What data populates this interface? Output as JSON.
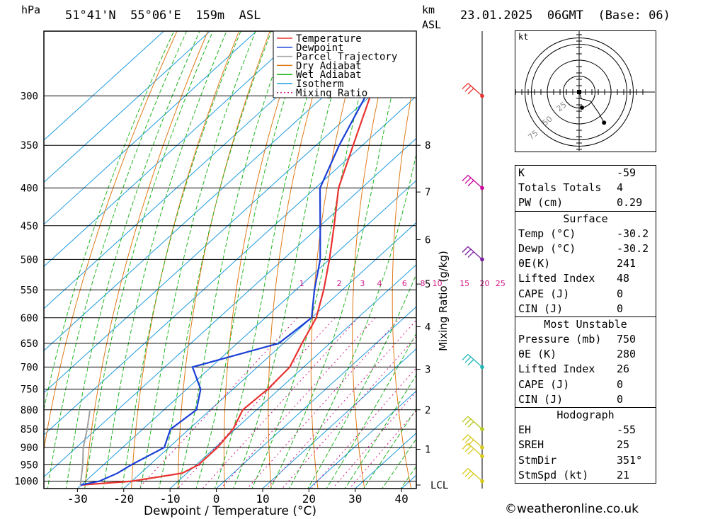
{
  "header": {
    "location": "51°41'N  55°06'E  159m  ASL",
    "datetime": "23.01.2025  06GMT  (Base: 06)",
    "pressure_unit": "hPa",
    "height_unit": "km",
    "height_unit2": "ASL"
  },
  "chart_data": {
    "type": "line",
    "subtype": "skew-T log-P diagram",
    "xlabel": "Dewpoint / Temperature (°C)",
    "ylabel": "hPa",
    "right_axis_label": "Mixing Ratio (g/kg)",
    "x_ticks": [
      -30,
      -20,
      -10,
      0,
      10,
      20,
      30,
      40
    ],
    "pressure_levels": [
      300,
      350,
      400,
      450,
      500,
      550,
      600,
      650,
      700,
      750,
      800,
      850,
      900,
      950,
      1000
    ],
    "km_ticks": [
      {
        "label": "8",
        "p": 350
      },
      {
        "label": "7",
        "p": 405
      },
      {
        "label": "6",
        "p": 470
      },
      {
        "label": "5",
        "p": 540
      },
      {
        "label": "4",
        "p": 617
      },
      {
        "label": "3",
        "p": 705
      },
      {
        "label": "2",
        "p": 800
      },
      {
        "label": "1",
        "p": 905
      },
      {
        "label": "LCL",
        "p": 1012
      }
    ],
    "mixing_ratio_labels": [
      "1",
      "2",
      "3",
      "4",
      "6",
      "8",
      "10",
      "15",
      "20",
      "25"
    ],
    "legend": [
      "Temperature",
      "Dewpoint",
      "Parcel Trajectory",
      "Dry Adiabat",
      "Wet Adiabat",
      "Isotherm",
      "Mixing Ratio"
    ],
    "colors": {
      "temperature": "#e8322f",
      "dewpoint": "#1a3fd6",
      "parcel": "#a0a0a0",
      "dry_adiabat": "#e07b1a",
      "wet_adiabat": "#21b521",
      "isotherm": "#1e9be0",
      "mixing_ratio": "#d01a8a"
    },
    "series": [
      {
        "name": "Temperature",
        "points": [
          {
            "p": 1012,
            "t": -30.2
          },
          {
            "p": 1000,
            "t": -20
          },
          {
            "p": 975,
            "t": -11
          },
          {
            "p": 950,
            "t": -9.5
          },
          {
            "p": 900,
            "t": -9.5
          },
          {
            "p": 850,
            "t": -10.5
          },
          {
            "p": 800,
            "t": -13
          },
          {
            "p": 750,
            "t": -12.5
          },
          {
            "p": 700,
            "t": -13
          },
          {
            "p": 650,
            "t": -16
          },
          {
            "p": 600,
            "t": -19
          },
          {
            "p": 550,
            "t": -24
          },
          {
            "p": 500,
            "t": -30
          },
          {
            "p": 450,
            "t": -37
          },
          {
            "p": 400,
            "t": -45
          },
          {
            "p": 350,
            "t": -52
          },
          {
            "p": 300,
            "t": -60
          }
        ]
      },
      {
        "name": "Dewpoint",
        "points": [
          {
            "p": 1012,
            "t": -30.2
          },
          {
            "p": 1000,
            "t": -27
          },
          {
            "p": 975,
            "t": -25
          },
          {
            "p": 950,
            "t": -24
          },
          {
            "p": 900,
            "t": -21
          },
          {
            "p": 850,
            "t": -24
          },
          {
            "p": 800,
            "t": -23
          },
          {
            "p": 750,
            "t": -27
          },
          {
            "p": 700,
            "t": -34
          },
          {
            "p": 650,
            "t": -21
          },
          {
            "p": 600,
            "t": -20
          },
          {
            "p": 550,
            "t": -26
          },
          {
            "p": 500,
            "t": -32
          },
          {
            "p": 450,
            "t": -40
          },
          {
            "p": 400,
            "t": -49
          },
          {
            "p": 350,
            "t": -55
          },
          {
            "p": 300,
            "t": -61
          }
        ]
      },
      {
        "name": "Parcel Trajectory",
        "points": [
          {
            "p": 1012,
            "t": -30.2
          },
          {
            "p": 950,
            "t": -34.5
          },
          {
            "p": 900,
            "t": -38.5
          },
          {
            "p": 850,
            "t": -42
          },
          {
            "p": 800,
            "t": -46
          }
        ]
      }
    ],
    "wind_barbs": [
      {
        "p": 300,
        "color": "#e8322f"
      },
      {
        "p": 400,
        "color": "#cc0099"
      },
      {
        "p": 500,
        "color": "#7a1fa0"
      },
      {
        "p": 700,
        "color": "#1ab5b5"
      },
      {
        "p": 850,
        "color": "#b5c81a"
      },
      {
        "p": 900,
        "color": "#d7c81a"
      },
      {
        "p": 925,
        "color": "#d7c81a"
      },
      {
        "p": 1000,
        "color": "#d7c81a"
      }
    ]
  },
  "hodograph": {
    "unit": "kt",
    "ring_labels": [
      "25",
      "50",
      "75"
    ],
    "trace": [
      [
        0,
        0
      ],
      [
        2,
        -6
      ],
      [
        10,
        -8
      ],
      [
        17,
        -18
      ],
      [
        22,
        -27
      ]
    ]
  },
  "indices": {
    "top": [
      {
        "label": "K",
        "value": "-59"
      },
      {
        "label": "Totals Totals",
        "value": "4"
      },
      {
        "label": "PW (cm)",
        "value": "0.29"
      }
    ],
    "surface_title": "Surface",
    "surface": [
      {
        "label": "Temp (°C)",
        "value": "-30.2"
      },
      {
        "label": "Dewp (°C)",
        "value": "-30.2"
      },
      {
        "label": "θE(K)",
        "value": "241"
      },
      {
        "label": "Lifted Index",
        "value": "48"
      },
      {
        "label": "CAPE (J)",
        "value": "0"
      },
      {
        "label": "CIN (J)",
        "value": "0"
      }
    ],
    "unstable_title": "Most Unstable",
    "unstable": [
      {
        "label": "Pressure (mb)",
        "value": "750"
      },
      {
        "label": "θE (K)",
        "value": "280"
      },
      {
        "label": "Lifted Index",
        "value": "26"
      },
      {
        "label": "CAPE (J)",
        "value": "0"
      },
      {
        "label": "CIN (J)",
        "value": "0"
      }
    ],
    "hodo_title": "Hodograph",
    "hodo": [
      {
        "label": "EH",
        "value": "-55"
      },
      {
        "label": "SREH",
        "value": "25"
      },
      {
        "label": "StmDir",
        "value": "351°"
      },
      {
        "label": "StmSpd (kt)",
        "value": "21"
      }
    ]
  },
  "credit": "©weatheronline.co.uk"
}
